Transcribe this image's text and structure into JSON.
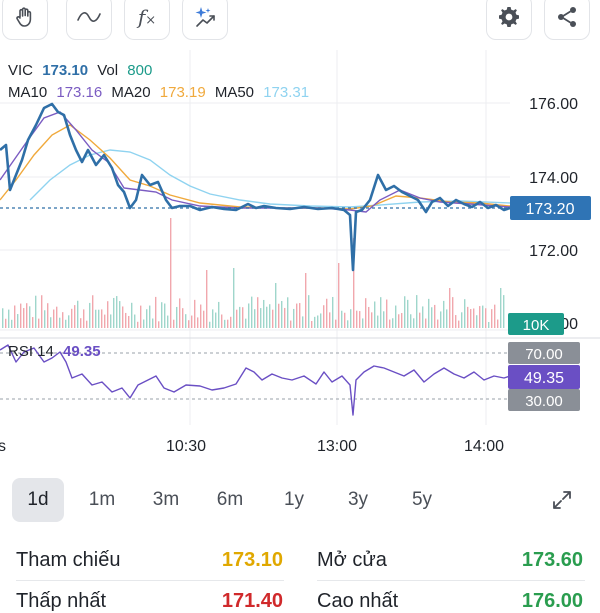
{
  "toolbar": {
    "left_icons": [
      "hand-icon",
      "wave-icon",
      "function-icon",
      "sparkle-chart-icon"
    ],
    "right_icons": [
      "gear-icon",
      "share-icon"
    ],
    "function_glyph": "fx"
  },
  "legend": {
    "symbol": "VIC",
    "price": "173.10",
    "vol_label": "Vol",
    "vol_value": "800",
    "ma10_label": "MA10",
    "ma10_value": "173.16",
    "ma20_label": "MA20",
    "ma20_value": "173.19",
    "ma50_label": "MA50",
    "ma50_value": "173.31",
    "rsi_label": "RSI 14",
    "rsi_value": "49.35"
  },
  "axis": {
    "price_ticks": [
      "176.00",
      "174.00",
      "172.00"
    ],
    "current_price": "173.20",
    "volume_tag": "10K",
    "volume_tick_partial": "00",
    "rsi_upper": "70.00",
    "rsi_value": "49.35",
    "rsi_lower": "30.00",
    "time_ticks": [
      "10:30",
      "13:00",
      "14:00"
    ],
    "time_tick_partial": "s"
  },
  "colors": {
    "price": "#2f6fa7",
    "ma10": "#7b5cc2",
    "ma20": "#f0a93c",
    "ma50": "#8fd3f0",
    "rsi": "#6a4fc4",
    "current_tag": "#2f74b5",
    "volume_tag": "#1c9b8a",
    "rsi_band": "#8a8f97",
    "up": "#2a9d4f",
    "ref": "#e0a800",
    "down": "#d0292b"
  },
  "periods": [
    {
      "label": "1d",
      "active": true
    },
    {
      "label": "1m",
      "active": false
    },
    {
      "label": "3m",
      "active": false
    },
    {
      "label": "6m",
      "active": false
    },
    {
      "label": "1y",
      "active": false
    },
    {
      "label": "3y",
      "active": false
    },
    {
      "label": "5y",
      "active": false
    }
  ],
  "expand_icon": "expand-icon",
  "stats": {
    "ref_label": "Tham chiếu",
    "ref_value": "173.10",
    "open_label": "Mở cửa",
    "open_value": "173.60",
    "low_label": "Thấp nhất",
    "low_value": "171.40",
    "high_label": "Cao nhất",
    "high_value": "176.00"
  }
}
